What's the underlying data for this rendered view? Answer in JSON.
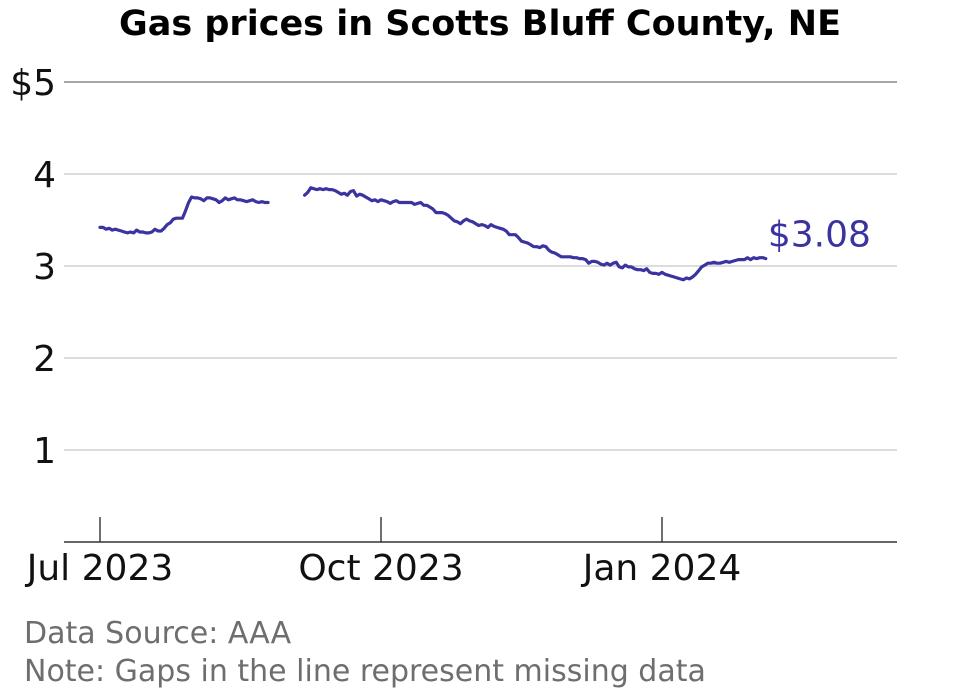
{
  "chart_data": {
    "type": "line",
    "title": "Gas prices in Scotts Bluff County, NE",
    "y_ticks": [
      "$5",
      "4",
      "3",
      "2",
      "1"
    ],
    "y_tick_values": [
      5,
      4,
      3,
      2,
      1
    ],
    "x_ticks": [
      "Jul 2023",
      "Oct 2023",
      "Jan 2024"
    ],
    "x_tick_dates": [
      "2023-07-01",
      "2023-10-01",
      "2024-01-01"
    ],
    "ylim": [
      0,
      5
    ],
    "grid": true,
    "line_color": "#3a33a0",
    "end_label": "$3.08",
    "series": [
      {
        "points": [
          [
            "2023-07-01",
            3.42
          ],
          [
            "2023-07-02",
            3.42
          ],
          [
            "2023-07-03",
            3.4
          ],
          [
            "2023-07-04",
            3.41
          ],
          [
            "2023-07-05",
            3.39
          ],
          [
            "2023-07-06",
            3.4
          ],
          [
            "2023-07-07",
            3.39
          ],
          [
            "2023-07-08",
            3.38
          ],
          [
            "2023-07-09",
            3.37
          ],
          [
            "2023-07-10",
            3.36
          ],
          [
            "2023-07-11",
            3.37
          ],
          [
            "2023-07-12",
            3.36
          ],
          [
            "2023-07-13",
            3.39
          ],
          [
            "2023-07-14",
            3.37
          ],
          [
            "2023-07-15",
            3.37
          ],
          [
            "2023-07-16",
            3.36
          ],
          [
            "2023-07-17",
            3.36
          ],
          [
            "2023-07-18",
            3.37
          ],
          [
            "2023-07-19",
            3.4
          ],
          [
            "2023-07-20",
            3.38
          ],
          [
            "2023-07-21",
            3.38
          ],
          [
            "2023-07-22",
            3.41
          ],
          [
            "2023-07-23",
            3.45
          ],
          [
            "2023-07-24",
            3.47
          ],
          [
            "2023-07-25",
            3.51
          ],
          [
            "2023-07-26",
            3.52
          ],
          [
            "2023-07-27",
            3.52
          ],
          [
            "2023-07-28",
            3.52
          ],
          [
            "2023-07-29",
            3.6
          ],
          [
            "2023-07-30",
            3.69
          ],
          [
            "2023-07-31",
            3.75
          ],
          [
            "2023-08-01",
            3.74
          ],
          [
            "2023-08-02",
            3.74
          ],
          [
            "2023-08-03",
            3.73
          ],
          [
            "2023-08-04",
            3.71
          ],
          [
            "2023-08-05",
            3.74
          ],
          [
            "2023-08-06",
            3.74
          ],
          [
            "2023-08-07",
            3.73
          ],
          [
            "2023-08-08",
            3.72
          ],
          [
            "2023-08-09",
            3.69
          ],
          [
            "2023-08-10",
            3.71
          ],
          [
            "2023-08-11",
            3.74
          ],
          [
            "2023-08-12",
            3.72
          ],
          [
            "2023-08-13",
            3.73
          ],
          [
            "2023-08-14",
            3.74
          ],
          [
            "2023-08-15",
            3.72
          ],
          [
            "2023-08-16",
            3.72
          ],
          [
            "2023-08-17",
            3.71
          ],
          [
            "2023-08-18",
            3.7
          ],
          [
            "2023-08-19",
            3.71
          ],
          [
            "2023-08-20",
            3.72
          ],
          [
            "2023-08-21",
            3.7
          ],
          [
            "2023-08-22",
            3.69
          ],
          [
            "2023-08-23",
            3.7
          ],
          [
            "2023-08-24",
            3.69
          ],
          [
            "2023-08-25",
            3.69
          ],
          null,
          [
            "2023-09-06",
            3.77
          ],
          [
            "2023-09-07",
            3.8
          ],
          [
            "2023-09-08",
            3.85
          ],
          [
            "2023-09-09",
            3.84
          ],
          [
            "2023-09-10",
            3.83
          ],
          [
            "2023-09-11",
            3.84
          ],
          [
            "2023-09-12",
            3.83
          ],
          [
            "2023-09-13",
            3.84
          ],
          [
            "2023-09-14",
            3.83
          ],
          [
            "2023-09-15",
            3.83
          ],
          [
            "2023-09-16",
            3.82
          ],
          [
            "2023-09-17",
            3.8
          ],
          [
            "2023-09-18",
            3.78
          ],
          [
            "2023-09-19",
            3.79
          ],
          [
            "2023-09-20",
            3.77
          ],
          [
            "2023-09-21",
            3.81
          ],
          [
            "2023-09-22",
            3.82
          ],
          [
            "2023-09-23",
            3.76
          ],
          [
            "2023-09-24",
            3.78
          ],
          [
            "2023-09-25",
            3.77
          ],
          [
            "2023-09-26",
            3.75
          ],
          [
            "2023-09-27",
            3.73
          ],
          [
            "2023-09-28",
            3.71
          ],
          [
            "2023-09-29",
            3.72
          ],
          [
            "2023-09-30",
            3.7
          ],
          [
            "2023-10-01",
            3.72
          ],
          [
            "2023-10-02",
            3.71
          ],
          [
            "2023-10-03",
            3.7
          ],
          [
            "2023-10-04",
            3.68
          ],
          [
            "2023-10-05",
            3.7
          ],
          [
            "2023-10-06",
            3.71
          ],
          [
            "2023-10-07",
            3.69
          ],
          [
            "2023-10-08",
            3.69
          ],
          [
            "2023-10-09",
            3.69
          ],
          [
            "2023-10-10",
            3.69
          ],
          [
            "2023-10-11",
            3.69
          ],
          [
            "2023-10-12",
            3.67
          ],
          [
            "2023-10-13",
            3.68
          ],
          [
            "2023-10-14",
            3.69
          ],
          [
            "2023-10-15",
            3.66
          ],
          [
            "2023-10-16",
            3.66
          ],
          [
            "2023-10-17",
            3.64
          ],
          [
            "2023-10-18",
            3.62
          ],
          [
            "2023-10-19",
            3.58
          ],
          [
            "2023-10-20",
            3.58
          ],
          [
            "2023-10-21",
            3.58
          ],
          [
            "2023-10-22",
            3.57
          ],
          [
            "2023-10-23",
            3.55
          ],
          [
            "2023-10-24",
            3.52
          ],
          [
            "2023-10-25",
            3.49
          ],
          [
            "2023-10-26",
            3.48
          ],
          [
            "2023-10-27",
            3.46
          ],
          [
            "2023-10-28",
            3.49
          ],
          [
            "2023-10-29",
            3.51
          ],
          [
            "2023-10-30",
            3.49
          ],
          [
            "2023-10-31",
            3.48
          ],
          [
            "2023-11-01",
            3.46
          ],
          [
            "2023-11-02",
            3.44
          ],
          [
            "2023-11-03",
            3.45
          ],
          [
            "2023-11-04",
            3.44
          ],
          [
            "2023-11-05",
            3.42
          ],
          [
            "2023-11-06",
            3.45
          ],
          [
            "2023-11-07",
            3.43
          ],
          [
            "2023-11-08",
            3.42
          ],
          [
            "2023-11-09",
            3.41
          ],
          [
            "2023-11-10",
            3.4
          ],
          [
            "2023-11-11",
            3.38
          ],
          [
            "2023-11-12",
            3.34
          ],
          [
            "2023-11-13",
            3.34
          ],
          [
            "2023-11-14",
            3.34
          ],
          [
            "2023-11-15",
            3.31
          ],
          [
            "2023-11-16",
            3.27
          ],
          [
            "2023-11-17",
            3.26
          ],
          [
            "2023-11-18",
            3.25
          ],
          [
            "2023-11-19",
            3.23
          ],
          [
            "2023-11-20",
            3.21
          ],
          [
            "2023-11-21",
            3.21
          ],
          [
            "2023-11-22",
            3.2
          ],
          [
            "2023-11-23",
            3.22
          ],
          [
            "2023-11-24",
            3.21
          ],
          [
            "2023-11-25",
            3.17
          ],
          [
            "2023-11-26",
            3.15
          ],
          [
            "2023-11-27",
            3.14
          ],
          [
            "2023-11-28",
            3.12
          ],
          [
            "2023-11-29",
            3.1
          ],
          [
            "2023-11-30",
            3.1
          ],
          [
            "2023-12-01",
            3.1
          ],
          [
            "2023-12-02",
            3.1
          ],
          [
            "2023-12-03",
            3.09
          ],
          [
            "2023-12-04",
            3.09
          ],
          [
            "2023-12-05",
            3.08
          ],
          [
            "2023-12-06",
            3.08
          ],
          [
            "2023-12-07",
            3.07
          ],
          [
            "2023-12-08",
            3.03
          ],
          [
            "2023-12-09",
            3.05
          ],
          [
            "2023-12-10",
            3.05
          ],
          [
            "2023-12-11",
            3.04
          ],
          [
            "2023-12-12",
            3.02
          ],
          [
            "2023-12-13",
            3.01
          ],
          [
            "2023-12-14",
            3.03
          ],
          [
            "2023-12-15",
            3.01
          ],
          [
            "2023-12-16",
            3.03
          ],
          [
            "2023-12-17",
            3.04
          ],
          [
            "2023-12-18",
            2.99
          ],
          [
            "2023-12-19",
            2.98
          ],
          [
            "2023-12-20",
            3.01
          ],
          [
            "2023-12-21",
            2.99
          ],
          [
            "2023-12-22",
            2.99
          ],
          [
            "2023-12-23",
            2.97
          ],
          [
            "2023-12-24",
            2.96
          ],
          [
            "2023-12-25",
            2.96
          ],
          [
            "2023-12-26",
            2.95
          ],
          [
            "2023-12-27",
            2.97
          ],
          [
            "2023-12-28",
            2.93
          ],
          [
            "2023-12-29",
            2.92
          ],
          [
            "2023-12-30",
            2.92
          ],
          [
            "2023-12-31",
            2.91
          ],
          [
            "2024-01-01",
            2.93
          ],
          [
            "2024-01-02",
            2.91
          ],
          [
            "2024-01-03",
            2.9
          ],
          [
            "2024-01-04",
            2.89
          ],
          [
            "2024-01-05",
            2.88
          ],
          [
            "2024-01-06",
            2.87
          ],
          [
            "2024-01-07",
            2.86
          ],
          [
            "2024-01-08",
            2.85
          ],
          [
            "2024-01-09",
            2.87
          ],
          [
            "2024-01-10",
            2.86
          ],
          [
            "2024-01-11",
            2.88
          ],
          [
            "2024-01-12",
            2.91
          ],
          [
            "2024-01-13",
            2.95
          ],
          [
            "2024-01-14",
            2.99
          ],
          [
            "2024-01-15",
            3.01
          ],
          [
            "2024-01-16",
            3.03
          ],
          [
            "2024-01-17",
            3.03
          ],
          [
            "2024-01-18",
            3.04
          ],
          [
            "2024-01-19",
            3.03
          ],
          [
            "2024-01-20",
            3.03
          ],
          [
            "2024-01-21",
            3.04
          ],
          [
            "2024-01-22",
            3.05
          ],
          [
            "2024-01-23",
            3.04
          ],
          [
            "2024-01-24",
            3.05
          ],
          [
            "2024-01-25",
            3.06
          ],
          [
            "2024-01-26",
            3.07
          ],
          [
            "2024-01-27",
            3.07
          ],
          [
            "2024-01-28",
            3.07
          ],
          [
            "2024-01-29",
            3.09
          ],
          [
            "2024-01-30",
            3.07
          ],
          [
            "2024-01-31",
            3.09
          ],
          [
            "2024-02-01",
            3.08
          ],
          [
            "2024-02-02",
            3.09
          ],
          [
            "2024-02-03",
            3.09
          ],
          [
            "2024-02-04",
            3.08
          ]
        ]
      }
    ]
  },
  "footer": {
    "source": "Data Source: AAA",
    "note": "Note: Gaps in the line represent missing data"
  }
}
